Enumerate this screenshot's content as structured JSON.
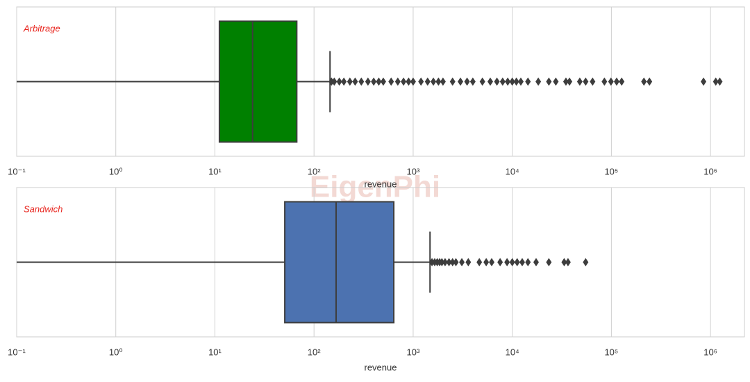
{
  "watermark": "EigenPhi",
  "chart_data": [
    {
      "type": "box",
      "label": "Arbitrage",
      "color": "#008000",
      "xlabel": "revenue",
      "xscale": "log",
      "grid": true,
      "xlim": [
        0.1,
        2200000
      ],
      "xticks": [
        {
          "value": 0.1,
          "label": "10⁻¹"
        },
        {
          "value": 1,
          "label": "10⁰"
        },
        {
          "value": 10,
          "label": "10¹"
        },
        {
          "value": 100,
          "label": "10²"
        },
        {
          "value": 1000,
          "label": "10³"
        },
        {
          "value": 10000,
          "label": "10⁴"
        },
        {
          "value": 100000,
          "label": "10⁵"
        },
        {
          "value": 1000000,
          "label": "10⁶"
        }
      ],
      "box": {
        "whislo": 0.1,
        "q1": 11.1,
        "med": 24,
        "q3": 67,
        "whishi": 145
      },
      "fliers": [
        150,
        160,
        180,
        200,
        230,
        260,
        300,
        350,
        400,
        450,
        500,
        600,
        700,
        800,
        900,
        1000,
        1200,
        1400,
        1600,
        1800,
        2000,
        2500,
        3000,
        3500,
        4000,
        5000,
        6000,
        7000,
        8000,
        9000,
        10000,
        11000,
        12200,
        14400,
        18300,
        23400,
        27500,
        34800,
        37800,
        48000,
        55000,
        64600,
        85000,
        99000,
        113000,
        127000,
        213000,
        242000,
        850000,
        1130000,
        1240000
      ]
    },
    {
      "type": "box",
      "label": "Sandwich",
      "color": "#4c72b0",
      "xlabel": "revenue",
      "xscale": "log",
      "grid": true,
      "xlim": [
        0.1,
        2200000
      ],
      "xticks": [
        {
          "value": 0.1,
          "label": "10⁻¹"
        },
        {
          "value": 1,
          "label": "10⁰"
        },
        {
          "value": 10,
          "label": "10¹"
        },
        {
          "value": 100,
          "label": "10²"
        },
        {
          "value": 1000,
          "label": "10³"
        },
        {
          "value": 10000,
          "label": "10⁴"
        },
        {
          "value": 100000,
          "label": "10⁵"
        },
        {
          "value": 1000000,
          "label": "10⁶"
        }
      ],
      "box": {
        "whislo": 0.1,
        "q1": 50.7,
        "med": 167,
        "q3": 638,
        "whishi": 1480
      },
      "fliers": [
        1550,
        1650,
        1750,
        1850,
        1950,
        2100,
        2300,
        2500,
        2700,
        3100,
        3600,
        4650,
        5460,
        6200,
        7540,
        8860,
        10000,
        11200,
        12600,
        14400,
        17400,
        23400,
        33400,
        36500,
        55000
      ]
    }
  ]
}
